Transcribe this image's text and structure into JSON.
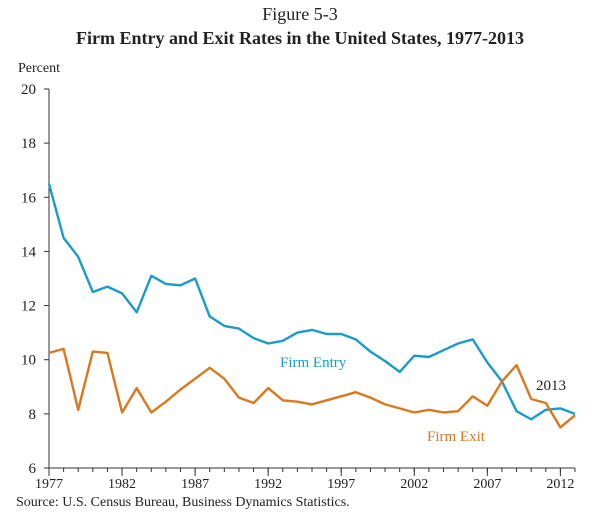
{
  "figure_label": "Figure 5-3",
  "source": "Source: U.S. Census Bureau, Business Dynamics Statistics.",
  "colors": {
    "entry": "#1a9bc9",
    "exit": "#d9781e",
    "axis": "#333333"
  },
  "chart_data": {
    "type": "line",
    "title": "Firm Entry and Exit Rates in the United States, 1977-2013",
    "ylabel": "Percent",
    "xlabel": "",
    "ylim": [
      6,
      20
    ],
    "xlim": [
      1977,
      2013
    ],
    "yticks": [
      "6",
      "8",
      "10",
      "12",
      "14",
      "16",
      "18",
      "20"
    ],
    "xticks": [
      "1977",
      "1982",
      "1987",
      "1992",
      "1997",
      "2002",
      "2007",
      "2012"
    ],
    "grid": false,
    "annotations": [
      "Firm Entry",
      "Firm Exit",
      "2013"
    ],
    "x": [
      1977,
      1978,
      1979,
      1980,
      1981,
      1982,
      1983,
      1984,
      1985,
      1986,
      1987,
      1988,
      1989,
      1990,
      1991,
      1992,
      1993,
      1994,
      1995,
      1996,
      1997,
      1998,
      1999,
      2000,
      2001,
      2002,
      2003,
      2004,
      2005,
      2006,
      2007,
      2008,
      2009,
      2010,
      2011,
      2012,
      2013
    ],
    "series": [
      {
        "name": "Firm Entry",
        "values": [
          16.5,
          14.5,
          13.8,
          12.5,
          12.7,
          12.45,
          11.75,
          13.1,
          12.8,
          12.75,
          13.0,
          11.6,
          11.25,
          11.15,
          10.8,
          10.6,
          10.7,
          11.0,
          11.1,
          10.95,
          10.95,
          10.75,
          10.3,
          9.95,
          9.55,
          10.15,
          10.1,
          10.35,
          10.6,
          10.75,
          9.9,
          9.2,
          8.1,
          7.8,
          8.15,
          8.2,
          8.0
        ]
      },
      {
        "name": "Firm Exit",
        "values": [
          10.25,
          10.4,
          8.15,
          10.3,
          10.25,
          8.05,
          8.95,
          8.05,
          8.45,
          8.9,
          9.3,
          9.7,
          9.3,
          8.6,
          8.4,
          8.95,
          8.5,
          8.45,
          8.35,
          8.5,
          8.65,
          8.8,
          8.6,
          8.35,
          8.2,
          8.05,
          8.15,
          8.05,
          8.1,
          8.65,
          8.3,
          9.2,
          9.8,
          8.55,
          8.4,
          7.5,
          7.95
        ]
      }
    ]
  }
}
